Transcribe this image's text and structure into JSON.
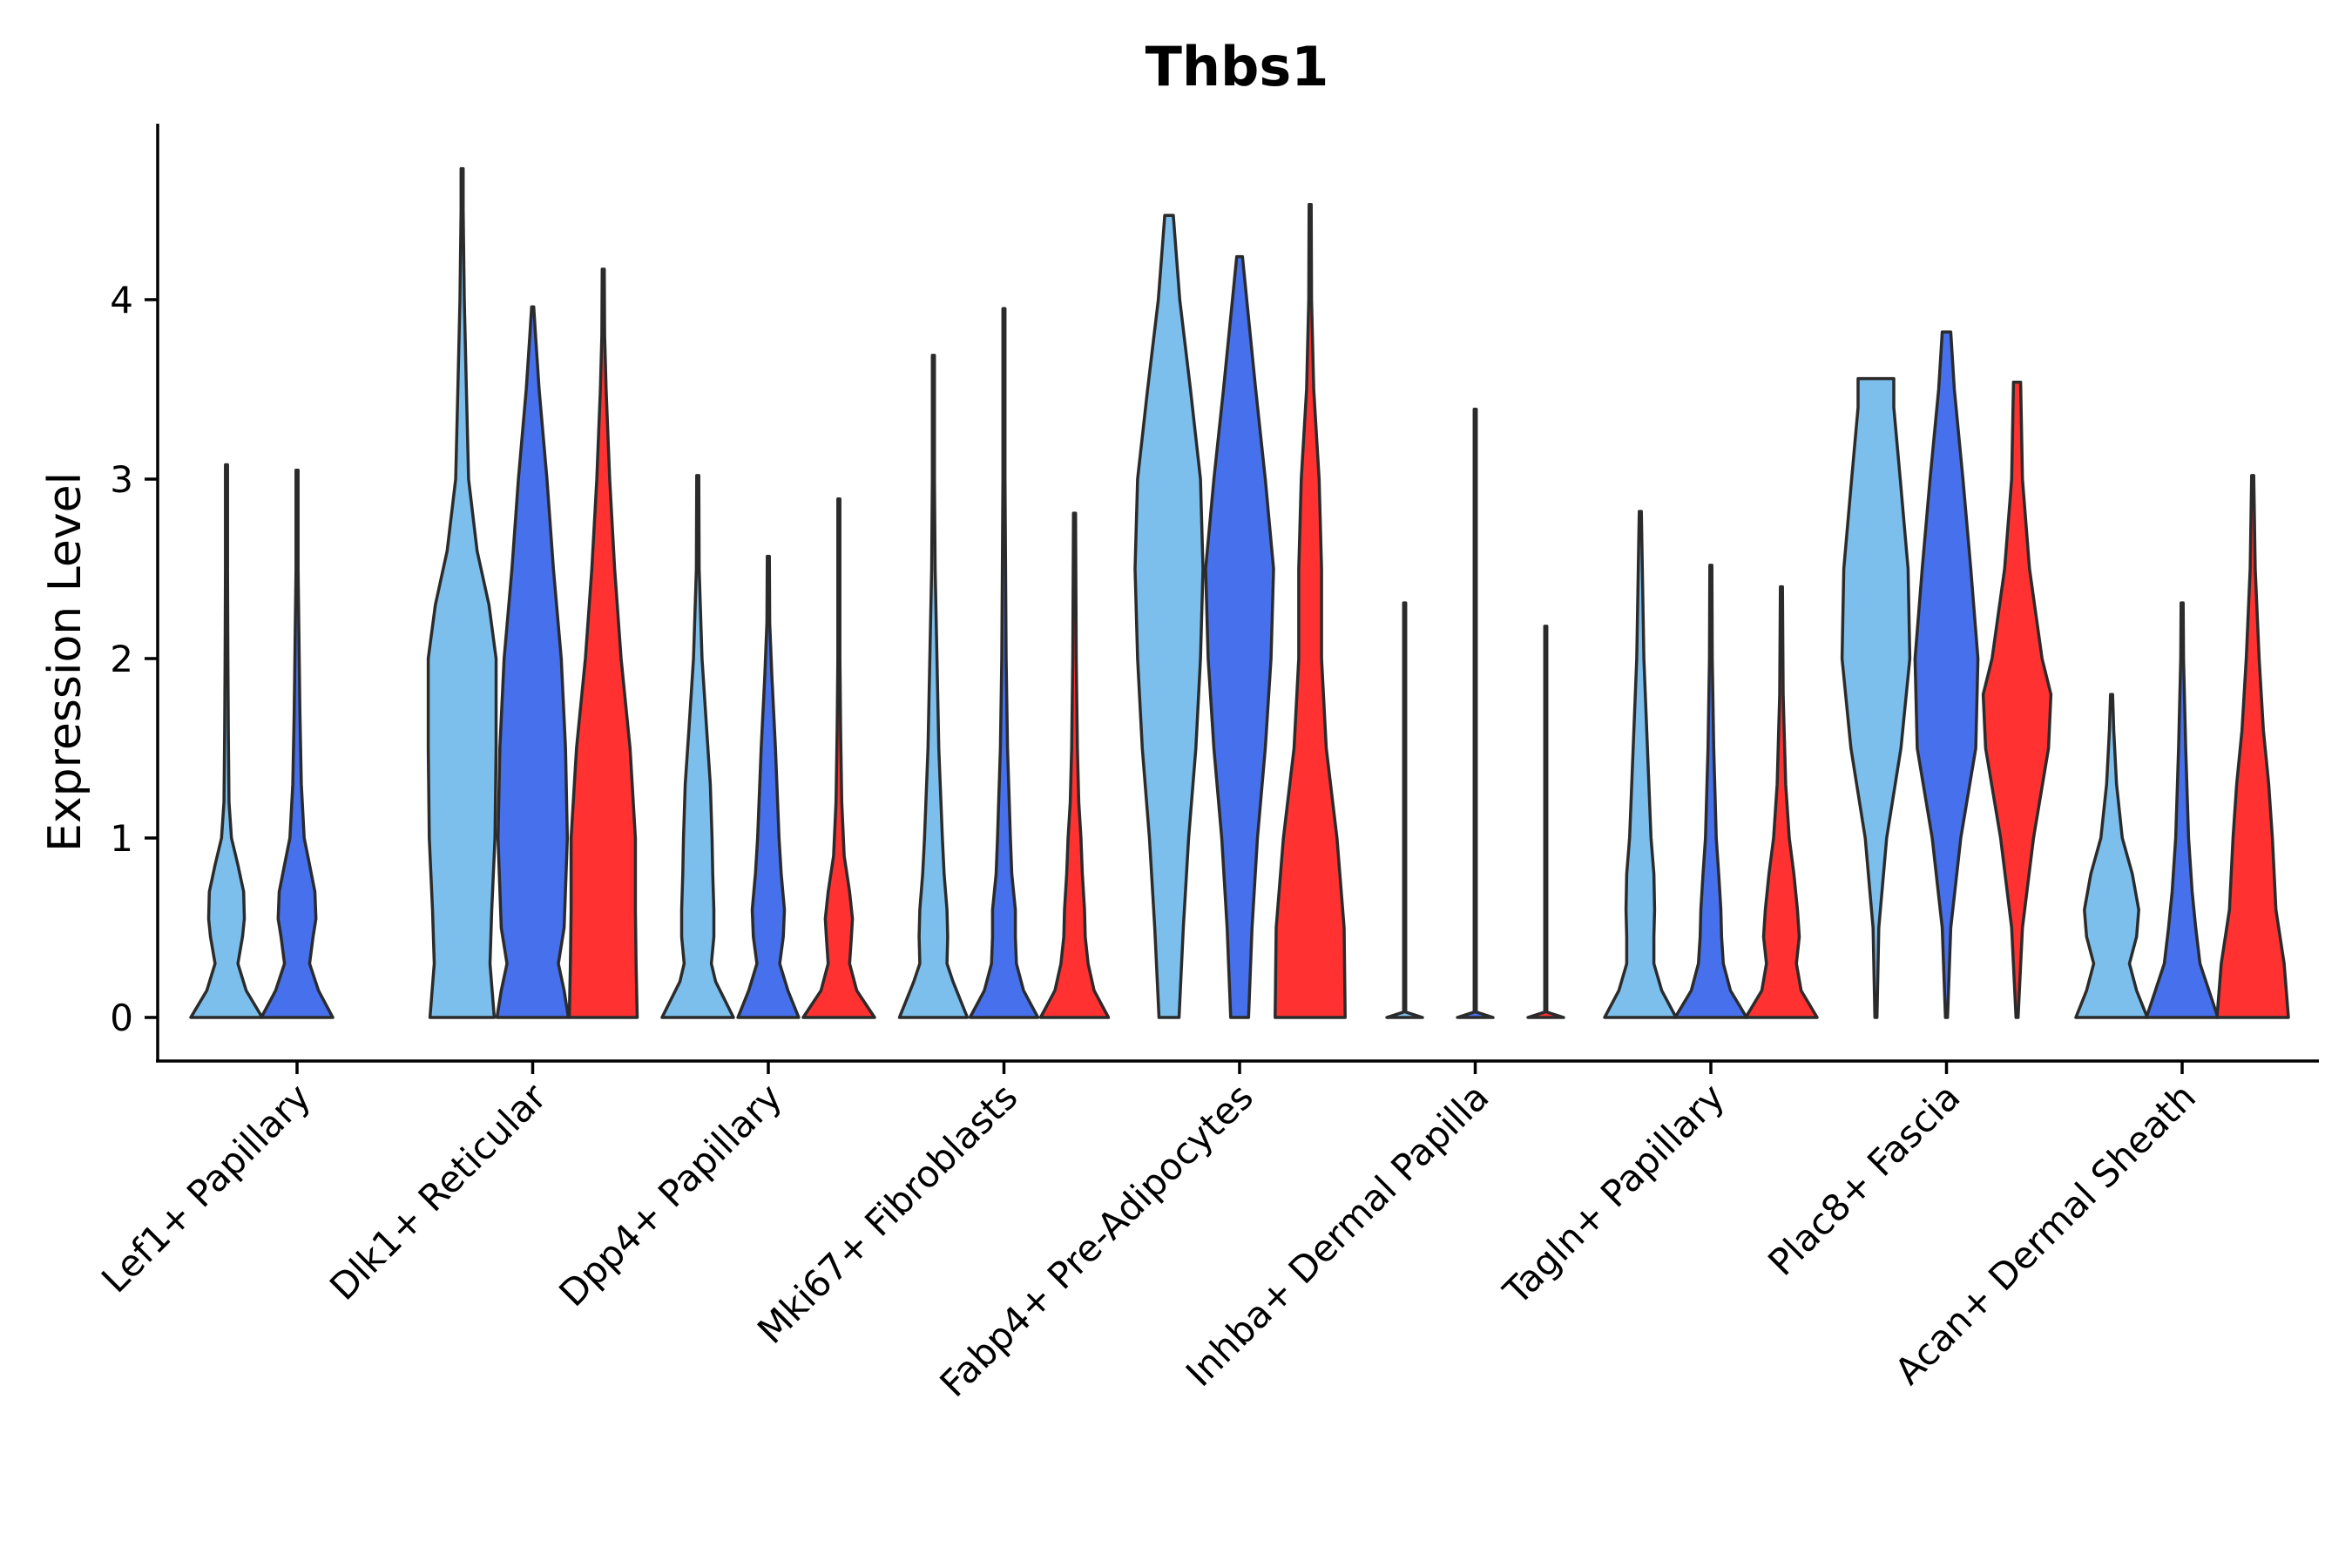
{
  "chart_data": {
    "type": "violin",
    "title": "Thbs1",
    "xlabel": "",
    "ylabel": "Expression Level",
    "ylim": [
      -0.25,
      4.95
    ],
    "yticks": [
      0,
      1,
      2,
      3,
      4
    ],
    "grid": false,
    "legend": "none",
    "categories": [
      "Lef1+ Papillary",
      "Dlk1+ Reticular",
      "Dpp4+ Papillary",
      "Mki67+ Fibroblasts",
      "Fabp4+ Pre-Adipocytes",
      "Inhba+ Dermal Papilla",
      "Tagln+ Papillary",
      "Plac8+ Fascia",
      "Acan+ Dermal Sheath"
    ],
    "group_colors": [
      "#7dbfec",
      "#4670ec",
      "#ff3131"
    ],
    "violins": [
      {
        "category": "Lef1+ Papillary",
        "group": 0,
        "max": 3.08,
        "shape": [
          [
            0,
            1.0
          ],
          [
            0.15,
            0.55
          ],
          [
            0.3,
            0.32
          ],
          [
            0.45,
            0.45
          ],
          [
            0.55,
            0.5
          ],
          [
            0.7,
            0.48
          ],
          [
            0.85,
            0.32
          ],
          [
            1.0,
            0.14
          ],
          [
            1.2,
            0.07
          ],
          [
            1.6,
            0.05
          ],
          [
            2.0,
            0.04
          ],
          [
            2.5,
            0.025
          ],
          [
            3.08,
            0.005
          ]
        ]
      },
      {
        "category": "Lef1+ Papillary",
        "group": 1,
        "max": 3.05,
        "shape": [
          [
            0,
            1.0
          ],
          [
            0.15,
            0.6
          ],
          [
            0.3,
            0.35
          ],
          [
            0.45,
            0.45
          ],
          [
            0.55,
            0.53
          ],
          [
            0.7,
            0.5
          ],
          [
            0.85,
            0.35
          ],
          [
            1.0,
            0.2
          ],
          [
            1.3,
            0.12
          ],
          [
            1.7,
            0.08
          ],
          [
            2.0,
            0.06
          ],
          [
            2.5,
            0.025
          ],
          [
            3.05,
            0.005
          ]
        ]
      },
      {
        "category": "Dlk1+ Reticular",
        "group": 0,
        "max": 4.73,
        "shape": [
          [
            0,
            0.9
          ],
          [
            0.3,
            0.78
          ],
          [
            0.6,
            0.83
          ],
          [
            1.0,
            0.92
          ],
          [
            1.5,
            0.95
          ],
          [
            2.0,
            0.95
          ],
          [
            2.3,
            0.75
          ],
          [
            2.6,
            0.42
          ],
          [
            3.0,
            0.18
          ],
          [
            3.5,
            0.12
          ],
          [
            4.0,
            0.06
          ],
          [
            4.5,
            0.02
          ],
          [
            4.73,
            0.005
          ]
        ]
      },
      {
        "category": "Dlk1+ Reticular",
        "group": 1,
        "max": 3.96,
        "shape": [
          [
            0,
            1.0
          ],
          [
            0.15,
            0.88
          ],
          [
            0.3,
            0.72
          ],
          [
            0.5,
            0.88
          ],
          [
            1.0,
            0.97
          ],
          [
            1.5,
            0.92
          ],
          [
            2.0,
            0.8
          ],
          [
            2.5,
            0.58
          ],
          [
            3.0,
            0.4
          ],
          [
            3.5,
            0.18
          ],
          [
            3.8,
            0.08
          ],
          [
            3.96,
            0.02
          ]
        ]
      },
      {
        "category": "Dlk1+ Reticular",
        "group": 2,
        "max": 4.17,
        "shape": [
          [
            0,
            0.95
          ],
          [
            0.3,
            0.92
          ],
          [
            0.6,
            0.9
          ],
          [
            1.0,
            0.9
          ],
          [
            1.5,
            0.75
          ],
          [
            2.0,
            0.5
          ],
          [
            2.5,
            0.32
          ],
          [
            3.0,
            0.18
          ],
          [
            3.5,
            0.08
          ],
          [
            3.8,
            0.04
          ],
          [
            4.17,
            0.005
          ]
        ]
      },
      {
        "category": "Dpp4+ Papillary",
        "group": 0,
        "max": 3.02,
        "shape": [
          [
            0,
            1.0
          ],
          [
            0.2,
            0.5
          ],
          [
            0.3,
            0.38
          ],
          [
            0.45,
            0.45
          ],
          [
            0.6,
            0.45
          ],
          [
            0.8,
            0.42
          ],
          [
            1.0,
            0.4
          ],
          [
            1.3,
            0.35
          ],
          [
            1.6,
            0.25
          ],
          [
            2.0,
            0.12
          ],
          [
            2.5,
            0.04
          ],
          [
            3.02,
            0.005
          ]
        ]
      },
      {
        "category": "Dpp4+ Papillary",
        "group": 1,
        "max": 2.57,
        "shape": [
          [
            0,
            0.85
          ],
          [
            0.15,
            0.55
          ],
          [
            0.3,
            0.32
          ],
          [
            0.45,
            0.42
          ],
          [
            0.6,
            0.45
          ],
          [
            0.8,
            0.36
          ],
          [
            1.0,
            0.3
          ],
          [
            1.5,
            0.2
          ],
          [
            1.9,
            0.1
          ],
          [
            2.2,
            0.04
          ],
          [
            2.57,
            0.005
          ]
        ]
      },
      {
        "category": "Dpp4+ Papillary",
        "group": 2,
        "max": 2.89,
        "shape": [
          [
            0,
            1.0
          ],
          [
            0.15,
            0.5
          ],
          [
            0.3,
            0.3
          ],
          [
            0.45,
            0.35
          ],
          [
            0.55,
            0.38
          ],
          [
            0.7,
            0.3
          ],
          [
            0.9,
            0.15
          ],
          [
            1.2,
            0.08
          ],
          [
            1.6,
            0.05
          ],
          [
            2.0,
            0.03
          ],
          [
            2.89,
            0.005
          ]
        ]
      },
      {
        "category": "Mki67+ Fibroblasts",
        "group": 0,
        "max": 3.69,
        "shape": [
          [
            0,
            0.95
          ],
          [
            0.2,
            0.55
          ],
          [
            0.3,
            0.38
          ],
          [
            0.45,
            0.4
          ],
          [
            0.6,
            0.38
          ],
          [
            0.8,
            0.3
          ],
          [
            1.0,
            0.25
          ],
          [
            1.5,
            0.15
          ],
          [
            2.0,
            0.1
          ],
          [
            2.5,
            0.05
          ],
          [
            3.0,
            0.02
          ],
          [
            3.69,
            0.005
          ]
        ]
      },
      {
        "category": "Mki67+ Fibroblasts",
        "group": 1,
        "max": 3.95,
        "shape": [
          [
            0,
            0.95
          ],
          [
            0.15,
            0.55
          ],
          [
            0.3,
            0.35
          ],
          [
            0.45,
            0.32
          ],
          [
            0.6,
            0.32
          ],
          [
            0.8,
            0.22
          ],
          [
            1.0,
            0.18
          ],
          [
            1.5,
            0.1
          ],
          [
            2.0,
            0.06
          ],
          [
            3.0,
            0.02
          ],
          [
            3.95,
            0.005
          ]
        ]
      },
      {
        "category": "Mki67+ Fibroblasts",
        "group": 2,
        "max": 2.81,
        "shape": [
          [
            0,
            0.95
          ],
          [
            0.15,
            0.55
          ],
          [
            0.3,
            0.38
          ],
          [
            0.45,
            0.3
          ],
          [
            0.6,
            0.28
          ],
          [
            0.8,
            0.22
          ],
          [
            1.0,
            0.18
          ],
          [
            1.2,
            0.12
          ],
          [
            1.5,
            0.08
          ],
          [
            2.0,
            0.05
          ],
          [
            2.81,
            0.005
          ]
        ]
      },
      {
        "category": "Fabp4+ Pre-Adipocytes",
        "group": 0,
        "max": 4.47,
        "shape": [
          [
            0,
            0.28
          ],
          [
            0.5,
            0.4
          ],
          [
            1.0,
            0.55
          ],
          [
            1.5,
            0.75
          ],
          [
            2.0,
            0.88
          ],
          [
            2.5,
            0.95
          ],
          [
            3.0,
            0.88
          ],
          [
            3.5,
            0.6
          ],
          [
            4.0,
            0.3
          ],
          [
            4.47,
            0.12
          ]
        ]
      },
      {
        "category": "Fabp4+ Pre-Adipocytes",
        "group": 1,
        "max": 4.24,
        "shape": [
          [
            0,
            0.25
          ],
          [
            0.5,
            0.35
          ],
          [
            1.0,
            0.5
          ],
          [
            1.5,
            0.72
          ],
          [
            2.0,
            0.88
          ],
          [
            2.5,
            0.95
          ],
          [
            3.0,
            0.72
          ],
          [
            3.5,
            0.45
          ],
          [
            4.0,
            0.2
          ],
          [
            4.24,
            0.08
          ]
        ]
      },
      {
        "category": "Fabp4+ Pre-Adipocytes",
        "group": 2,
        "max": 4.53,
        "shape": [
          [
            0,
            0.98
          ],
          [
            0.5,
            0.95
          ],
          [
            1.0,
            0.75
          ],
          [
            1.5,
            0.45
          ],
          [
            2.0,
            0.32
          ],
          [
            2.5,
            0.32
          ],
          [
            3.0,
            0.25
          ],
          [
            3.5,
            0.1
          ],
          [
            4.0,
            0.04
          ],
          [
            4.53,
            0.005
          ]
        ]
      },
      {
        "category": "Inhba+ Dermal Papilla",
        "group": 0,
        "max": 2.31,
        "shape": [
          [
            0,
            0.5
          ],
          [
            0.03,
            0.02
          ],
          [
            0.5,
            0.01
          ],
          [
            2.31,
            0.005
          ]
        ]
      },
      {
        "category": "Inhba+ Dermal Papilla",
        "group": 1,
        "max": 3.39,
        "shape": [
          [
            0,
            0.5
          ],
          [
            0.03,
            0.02
          ],
          [
            0.5,
            0.01
          ],
          [
            3.39,
            0.005
          ]
        ]
      },
      {
        "category": "Inhba+ Dermal Papilla",
        "group": 2,
        "max": 2.18,
        "shape": [
          [
            0,
            0.5
          ],
          [
            0.03,
            0.02
          ],
          [
            0.5,
            0.01
          ],
          [
            2.18,
            0.005
          ]
        ]
      },
      {
        "category": "Tagln+ Papillary",
        "group": 0,
        "max": 2.82,
        "shape": [
          [
            0,
            1.0
          ],
          [
            0.15,
            0.6
          ],
          [
            0.3,
            0.38
          ],
          [
            0.45,
            0.38
          ],
          [
            0.6,
            0.4
          ],
          [
            0.8,
            0.38
          ],
          [
            1.0,
            0.3
          ],
          [
            1.5,
            0.2
          ],
          [
            2.0,
            0.1
          ],
          [
            2.82,
            0.005
          ]
        ]
      },
      {
        "category": "Tagln+ Papillary",
        "group": 1,
        "max": 2.52,
        "shape": [
          [
            0,
            1.0
          ],
          [
            0.15,
            0.55
          ],
          [
            0.3,
            0.35
          ],
          [
            0.45,
            0.3
          ],
          [
            0.6,
            0.28
          ],
          [
            0.8,
            0.22
          ],
          [
            1.0,
            0.15
          ],
          [
            1.5,
            0.08
          ],
          [
            2.0,
            0.04
          ],
          [
            2.52,
            0.005
          ]
        ]
      },
      {
        "category": "Tagln+ Papillary",
        "group": 2,
        "max": 2.4,
        "shape": [
          [
            0,
            1.0
          ],
          [
            0.15,
            0.55
          ],
          [
            0.3,
            0.42
          ],
          [
            0.45,
            0.5
          ],
          [
            0.6,
            0.45
          ],
          [
            0.8,
            0.35
          ],
          [
            1.0,
            0.22
          ],
          [
            1.3,
            0.12
          ],
          [
            1.8,
            0.05
          ],
          [
            2.4,
            0.005
          ]
        ]
      },
      {
        "category": "Plac8+ Fascia",
        "group": 0,
        "max": 3.56,
        "shape": [
          [
            0,
            0.005
          ],
          [
            0.5,
            0.08
          ],
          [
            1.0,
            0.3
          ],
          [
            1.5,
            0.7
          ],
          [
            2.0,
            0.95
          ],
          [
            2.5,
            0.9
          ],
          [
            3.0,
            0.68
          ],
          [
            3.4,
            0.5
          ],
          [
            3.56,
            0.5
          ]
        ]
      },
      {
        "category": "Plac8+ Fascia",
        "group": 1,
        "max": 3.82,
        "shape": [
          [
            0,
            0.005
          ],
          [
            0.5,
            0.12
          ],
          [
            1.0,
            0.4
          ],
          [
            1.5,
            0.82
          ],
          [
            2.0,
            0.88
          ],
          [
            2.5,
            0.68
          ],
          [
            3.0,
            0.46
          ],
          [
            3.5,
            0.22
          ],
          [
            3.82,
            0.12
          ]
        ]
      },
      {
        "category": "Plac8+ Fascia",
        "group": 2,
        "max": 3.54,
        "shape": [
          [
            0,
            0.005
          ],
          [
            0.5,
            0.15
          ],
          [
            1.0,
            0.46
          ],
          [
            1.5,
            0.88
          ],
          [
            1.8,
            0.95
          ],
          [
            2.0,
            0.7
          ],
          [
            2.5,
            0.35
          ],
          [
            3.0,
            0.15
          ],
          [
            3.54,
            0.1
          ]
        ]
      },
      {
        "category": "Acan+ Dermal Sheath",
        "group": 0,
        "max": 1.8,
        "shape": [
          [
            0,
            1.0
          ],
          [
            0.15,
            0.7
          ],
          [
            0.3,
            0.5
          ],
          [
            0.45,
            0.7
          ],
          [
            0.6,
            0.76
          ],
          [
            0.8,
            0.58
          ],
          [
            1.0,
            0.3
          ],
          [
            1.3,
            0.14
          ],
          [
            1.6,
            0.06
          ],
          [
            1.8,
            0.005
          ]
        ]
      },
      {
        "category": "Acan+ Dermal Sheath",
        "group": 1,
        "max": 2.31,
        "shape": [
          [
            0,
            1.0
          ],
          [
            0.15,
            0.75
          ],
          [
            0.3,
            0.5
          ],
          [
            0.5,
            0.38
          ],
          [
            0.7,
            0.28
          ],
          [
            1.0,
            0.18
          ],
          [
            1.5,
            0.1
          ],
          [
            2.0,
            0.04
          ],
          [
            2.31,
            0.005
          ]
        ]
      },
      {
        "category": "Acan+ Dermal Sheath",
        "group": 2,
        "max": 3.02,
        "shape": [
          [
            0,
            1.0
          ],
          [
            0.3,
            0.88
          ],
          [
            0.6,
            0.65
          ],
          [
            1.0,
            0.55
          ],
          [
            1.3,
            0.45
          ],
          [
            1.6,
            0.3
          ],
          [
            2.0,
            0.18
          ],
          [
            2.5,
            0.07
          ],
          [
            3.02,
            0.005
          ]
        ]
      }
    ]
  }
}
